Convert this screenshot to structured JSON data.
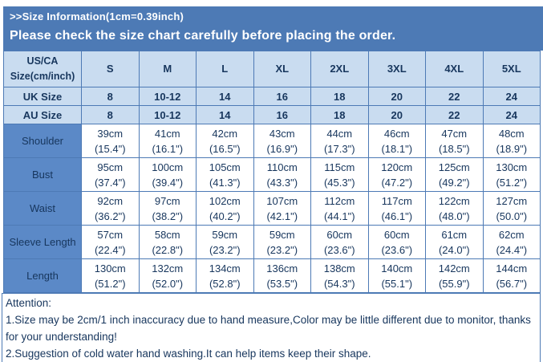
{
  "banner": {
    "title": ">>Size Information(1cm=0.39inch)",
    "subtitle": "Please check the size chart carefully before placing the order."
  },
  "table": {
    "header": [
      "US/CA\nSize(cm/inch)",
      "S",
      "M",
      "L",
      "XL",
      "2XL",
      "3XL",
      "4XL",
      "5XL"
    ],
    "size_rows": [
      {
        "label": "UK Size",
        "values": [
          "8",
          "10-12",
          "14",
          "16",
          "18",
          "20",
          "22",
          "24"
        ]
      },
      {
        "label": "AU Size",
        "values": [
          "8",
          "10-12",
          "14",
          "16",
          "18",
          "20",
          "22",
          "24"
        ]
      }
    ],
    "measure_rows": [
      {
        "label": "Shoulder",
        "values": [
          "39cm\n(15.4\")",
          "41cm\n(16.1\")",
          "42cm\n(16.5\")",
          "43cm\n(16.9\")",
          "44cm\n(17.3\")",
          "46cm\n(18.1\")",
          "47cm\n(18.5\")",
          "48cm\n(18.9\")"
        ]
      },
      {
        "label": "Bust",
        "values": [
          "95cm\n(37.4\")",
          "100cm\n(39.4\")",
          "105cm\n(41.3\")",
          "110cm\n(43.3\")",
          "115cm\n(45.3\")",
          "120cm\n(47.2\")",
          "125cm\n(49.2\")",
          "130cm\n(51.2\")"
        ]
      },
      {
        "label": "Waist",
        "values": [
          "92cm\n(36.2\")",
          "97cm\n(38.2\")",
          "102cm\n(40.2\")",
          "107cm\n(42.1\")",
          "112cm\n(44.1\")",
          "117cm\n(46.1\")",
          "122cm\n(48.0\")",
          "127cm\n(50.0\")"
        ]
      },
      {
        "label": "Sleeve Length",
        "values": [
          "57cm\n(22.4\")",
          "58cm\n(22.8\")",
          "59cm\n(23.2\")",
          "59cm\n(23.2\")",
          "60cm\n(23.6\")",
          "60cm\n(23.6\")",
          "61cm\n(24.0\")",
          "62cm\n(24.4\")"
        ]
      },
      {
        "label": "Length",
        "values": [
          "130cm\n(51.2\")",
          "132cm\n(52.0\")",
          "134cm\n(52.8\")",
          "136cm\n(53.5\")",
          "138cm\n(54.3\")",
          "140cm\n(55.1\")",
          "142cm\n(55.9\")",
          "144cm\n(56.7\")"
        ]
      }
    ]
  },
  "attention": {
    "title": "Attention:",
    "notes": [
      "1.Size may be 2cm/1 inch inaccuracy due to hand measure,Color may be little different due to monitor, thanks for your understanding!",
      "2.Suggestion of cold water hand washing.It can help items keep their shape."
    ]
  },
  "colors": {
    "banner_blue": "#4d7ab5",
    "border_blue": "#4d7ab5",
    "light_blue": "#c9dcf0",
    "label_blue": "#5b89c7",
    "text_navy": "#17365d",
    "banner_text": "#ffffff"
  }
}
